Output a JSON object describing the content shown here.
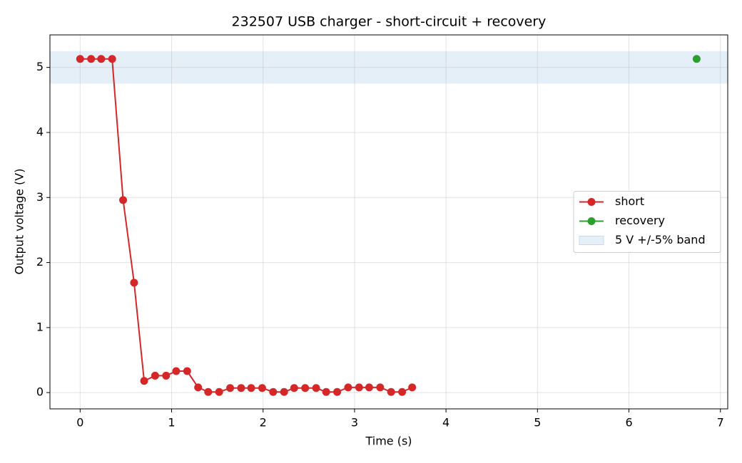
{
  "chart_data": {
    "type": "line",
    "title": "232507 USB charger - short-circuit + recovery",
    "x_label": "Time (s)",
    "y_label": "Output voltage (V)",
    "xlim": [
      -0.33,
      7.08
    ],
    "ylim": [
      -0.25,
      5.5
    ],
    "xticks": [
      0,
      1,
      2,
      3,
      4,
      5,
      6,
      7
    ],
    "yticks": [
      0,
      1,
      2,
      3,
      4,
      5
    ],
    "grid": true,
    "legend": "center right",
    "band": {
      "name": "5 V +/-5% band",
      "range": [
        4.75,
        5.25
      ],
      "color": "#c6dbef"
    },
    "series": [
      {
        "name": "short",
        "color": "#d62728",
        "x": [
          0,
          0.12,
          0.23,
          0.35,
          0.47,
          0.59,
          0.7,
          0.82,
          0.94,
          1.05,
          1.17,
          1.29,
          1.4,
          1.52,
          1.64,
          1.76,
          1.87,
          1.99,
          2.11,
          2.23,
          2.34,
          2.46,
          2.58,
          2.69,
          2.81,
          2.93,
          3.05,
          3.16,
          3.28,
          3.4,
          3.52,
          3.63
        ],
        "values": [
          5.13,
          5.13,
          5.13,
          5.13,
          2.96,
          1.69,
          0.18,
          0.26,
          0.26,
          0.33,
          0.33,
          0.08,
          0.01,
          0.01,
          0.07,
          0.07,
          0.07,
          0.07,
          0.01,
          0.01,
          0.07,
          0.07,
          0.07,
          0.01,
          0.01,
          0.08,
          0.08,
          0.08,
          0.08,
          0.01,
          0.01,
          0.08
        ]
      },
      {
        "name": "recovery",
        "color": "#2ca02c",
        "x": [
          6.74
        ],
        "values": [
          5.13
        ]
      }
    ]
  }
}
